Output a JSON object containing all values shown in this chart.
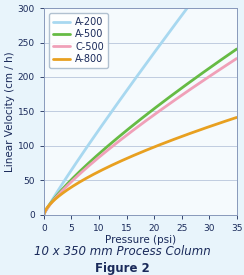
{
  "title_sub": "10 x 350 mm Process Column",
  "title_fig": "Figure 2",
  "xlabel": "Pressure (psi)",
  "ylabel": "Linear Velocity (cm / h)",
  "xlim": [
    0,
    35
  ],
  "ylim": [
    0,
    300
  ],
  "xticks": [
    0,
    5,
    10,
    15,
    20,
    25,
    30,
    35
  ],
  "yticks": [
    0,
    50,
    100,
    150,
    200,
    250,
    300
  ],
  "background_color": "#e8f4fb",
  "plot_bg_color": "#f5fafd",
  "curves": [
    {
      "label": "A-200",
      "color": "#a8d8f0",
      "lw": 2.0,
      "k": 50.0,
      "n": 0.92
    },
    {
      "label": "A-500",
      "color": "#66bb44",
      "lw": 2.0,
      "k": 42.0,
      "n": 0.78
    },
    {
      "label": "C-500",
      "color": "#f0a0b8",
      "lw": 2.0,
      "k": 40.0,
      "n": 0.78
    },
    {
      "label": "A-800",
      "color": "#e8a020",
      "lw": 2.0,
      "k": 33.0,
      "n": 0.68
    }
  ],
  "grid_color": "#c0cce0",
  "spine_color": "#8899bb",
  "legend_fontsize": 7.0,
  "tick_fontsize": 6.5,
  "label_fontsize": 7.5,
  "sub_fontsize": 8.5,
  "fig_fontsize": 8.5,
  "text_color": "#1a2a5a"
}
